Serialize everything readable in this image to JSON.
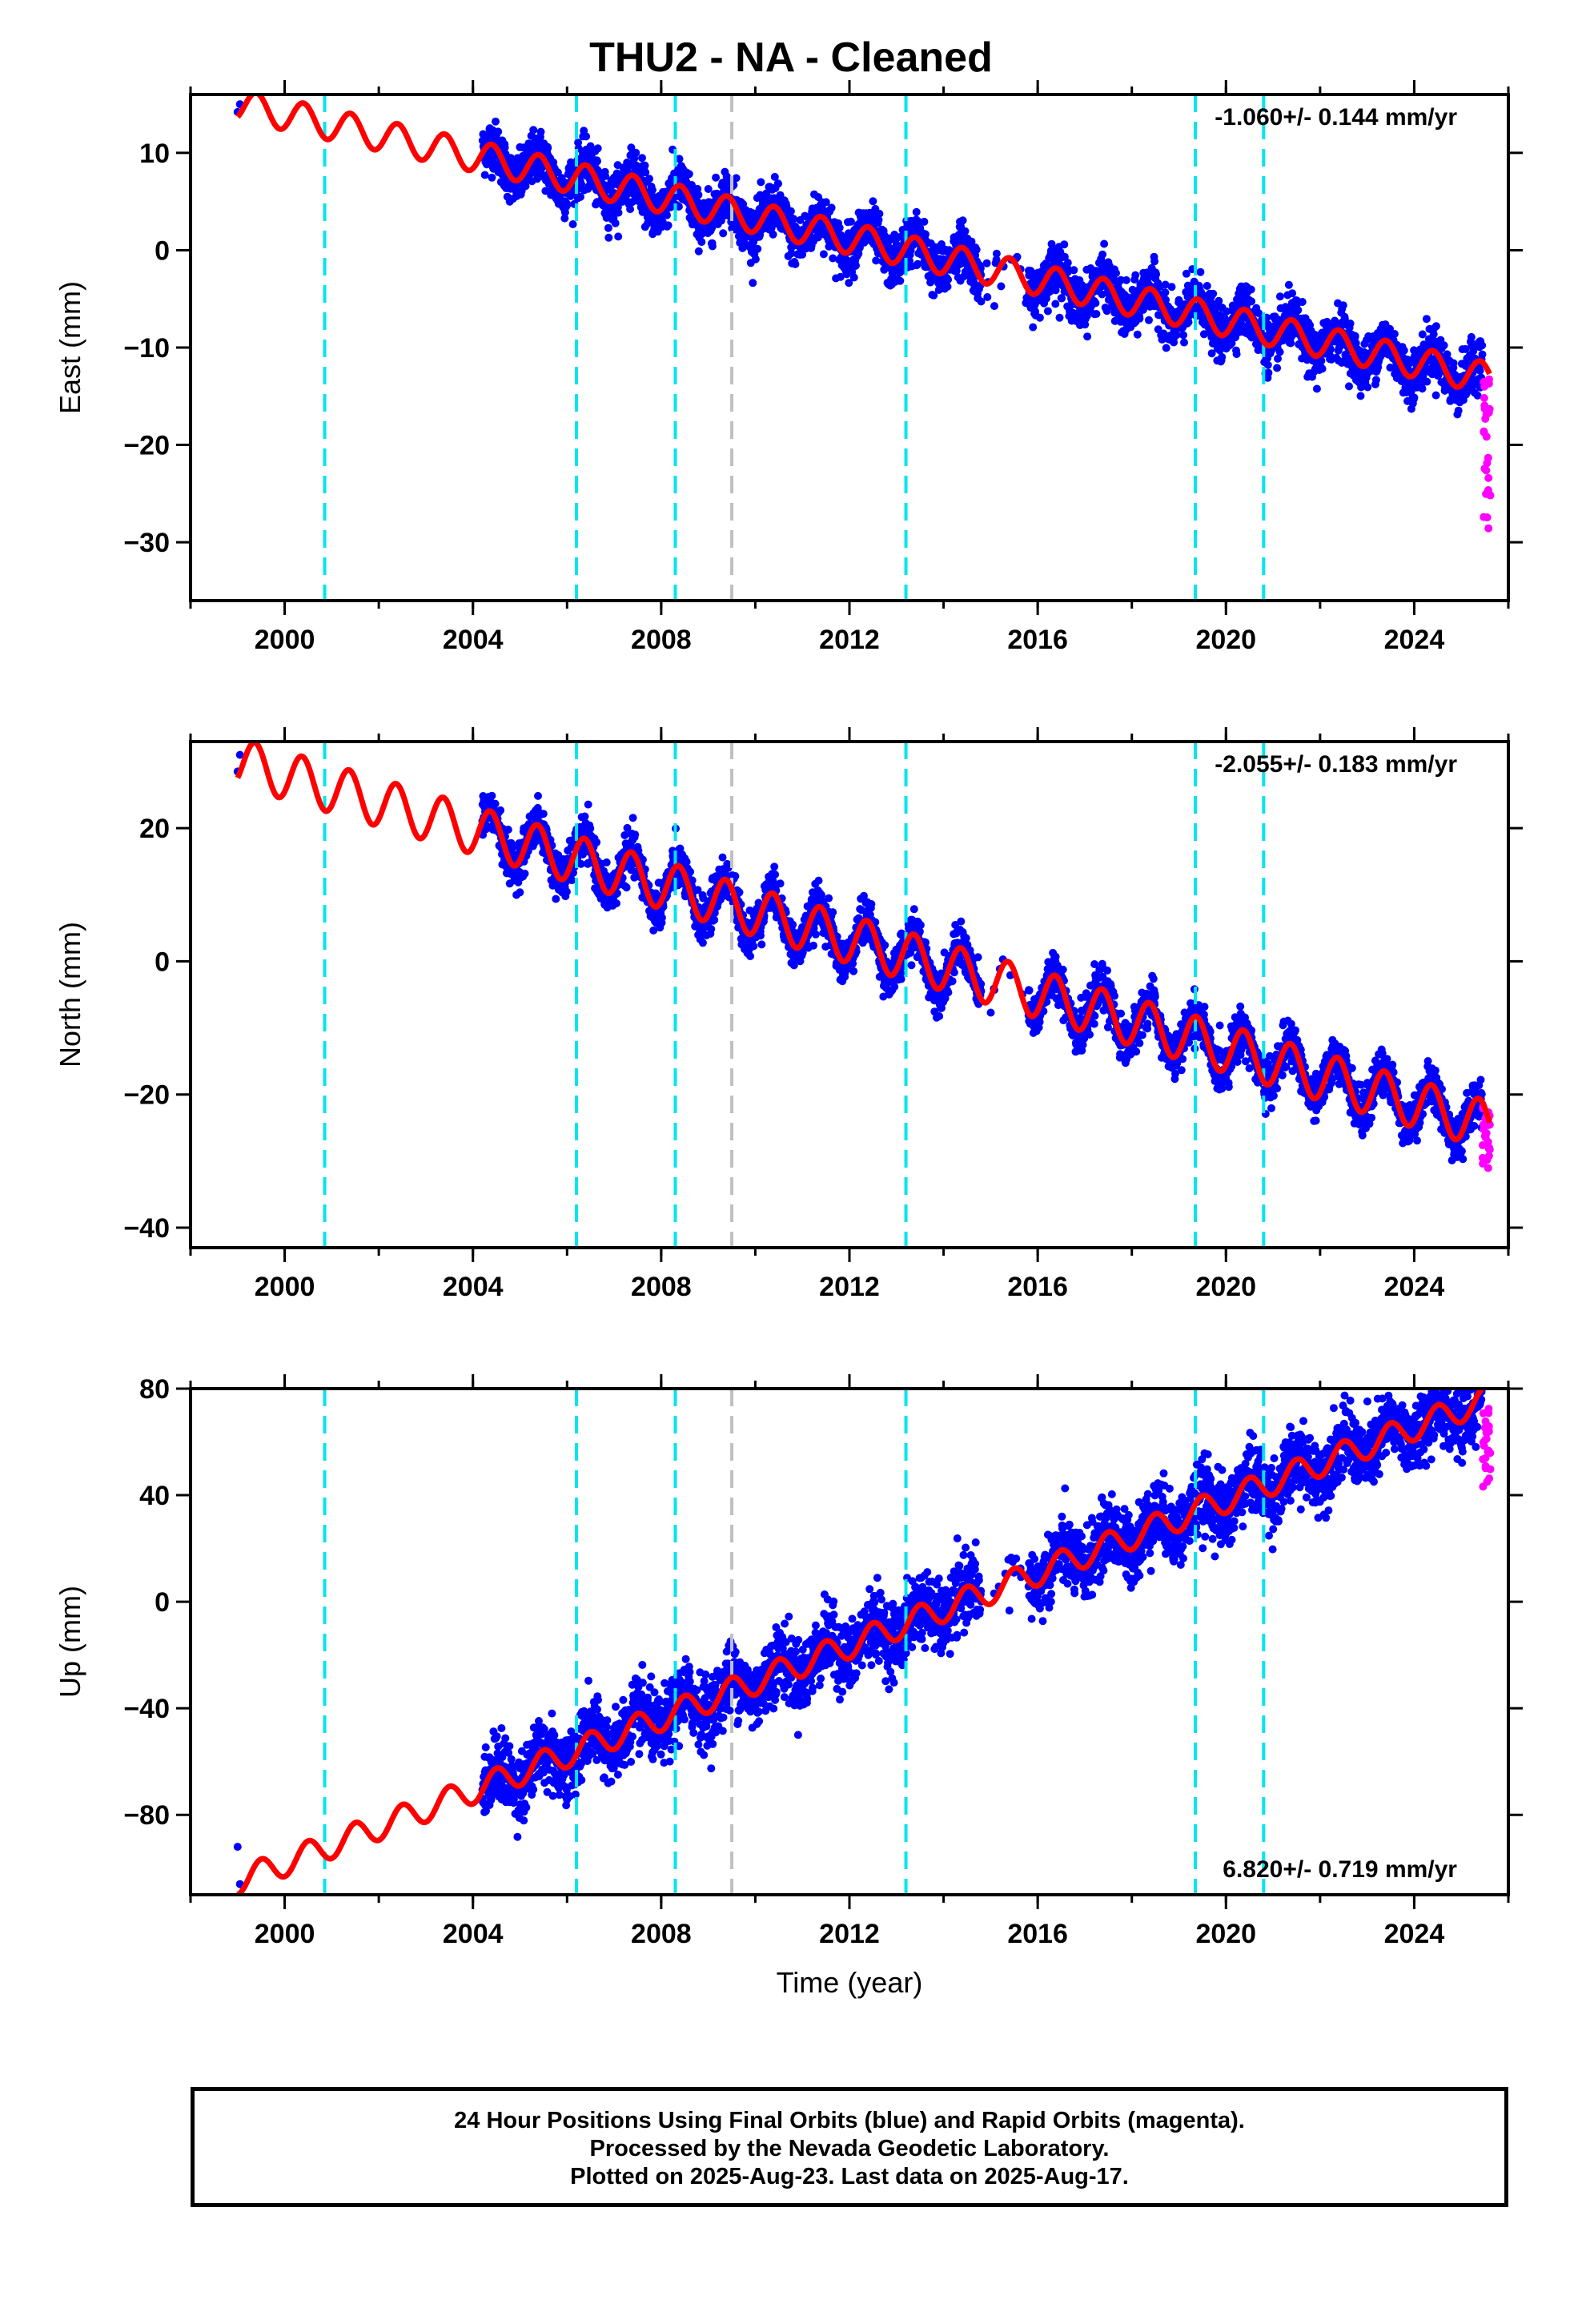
{
  "title": "THU2  - NA - Cleaned",
  "footer": {
    "line1": "24 Hour Positions Using Final Orbits (blue) and Rapid Orbits (magenta).",
    "line2": "Processed by the Nevada Geodetic Laboratory.",
    "line3": "Plotted on 2025-Aug-23. Last data on 2025-Aug-17."
  },
  "colors": {
    "final": "#0000ff",
    "rapid": "#ff00ff",
    "model": "#ff0000",
    "offset_line": "#00e5ee",
    "gap_line": "#c0c0c0"
  },
  "chart_data": [
    {
      "type": "scatter",
      "component": "East",
      "ylabel": "East (mm)",
      "xlabel": "",
      "xlim": [
        1998.0,
        2026.0
      ],
      "ylim": [
        -36,
        16
      ],
      "x_ticks": [
        "2000",
        "2004",
        "2008",
        "2012",
        "2016",
        "2020",
        "2024"
      ],
      "y_ticks": [
        "−30",
        "−20",
        "−10",
        "0",
        "10"
      ],
      "y_tick_values": [
        -30,
        -20,
        -10,
        0,
        10
      ],
      "rate": "-1.060+/- 0.144 mm/yr",
      "rate_position": "top-right",
      "model": {
        "start": 1999.0,
        "end": 2025.6,
        "intercept": 15.0,
        "slope": -1.06,
        "amplitude": 1.6,
        "phase": 0.15
      },
      "scatter_noise": 1.3,
      "data_start": 2004.2,
      "early_points": {
        "x": [
          1999.0,
          1999.05
        ],
        "y": [
          14.2,
          15.0
        ]
      },
      "gaps": [
        [
          2014.8,
          2015.8
        ]
      ],
      "rapid": {
        "x_start": 2025.45,
        "x_end": 2025.62,
        "y_min": -30.4,
        "y_max": -13.0
      },
      "offsets": [
        2000.85,
        2006.2,
        2008.3,
        2013.2,
        2019.35,
        2020.8
      ],
      "gap_marker": 2009.5
    },
    {
      "type": "scatter",
      "component": "North",
      "ylabel": "North (mm)",
      "xlabel": "",
      "xlim": [
        1998.0,
        2026.0
      ],
      "ylim": [
        -43,
        33
      ],
      "x_ticks": [
        "2000",
        "2004",
        "2008",
        "2012",
        "2016",
        "2020",
        "2024"
      ],
      "y_ticks": [
        "−40",
        "−20",
        "0",
        "20"
      ],
      "y_tick_values": [
        -40,
        -20,
        0,
        20
      ],
      "rate": "-2.055+/- 0.183 mm/yr",
      "rate_position": "top-right",
      "model": {
        "start": 1999.0,
        "end": 2025.6,
        "intercept": 30.0,
        "slope": -2.055,
        "amplitude": 3.6,
        "phase": 0.12
      },
      "scatter_noise": 1.6,
      "data_start": 2004.2,
      "early_points": {
        "x": [
          1999.0,
          1999.05
        ],
        "y": [
          28.5,
          31.0
        ]
      },
      "gaps": [
        [
          2014.8,
          2015.8
        ]
      ],
      "rapid": {
        "x_start": 2025.45,
        "x_end": 2025.62,
        "y_min": -32.0,
        "y_max": -21.0
      },
      "offsets": [
        2000.85,
        2006.2,
        2008.3,
        2013.2,
        2019.35,
        2020.8
      ],
      "gap_marker": 2009.5
    },
    {
      "type": "scatter",
      "component": "Up",
      "ylabel": "Up (mm)",
      "xlabel": "Time (year)",
      "xlim": [
        1998.0,
        2026.0
      ],
      "ylim": [
        -110,
        80
      ],
      "x_ticks": [
        "2000",
        "2004",
        "2008",
        "2012",
        "2016",
        "2020",
        "2024"
      ],
      "y_ticks": [
        "−80",
        "−40",
        "0",
        "40",
        "80"
      ],
      "y_tick_values": [
        -80,
        -40,
        0,
        40,
        80
      ],
      "rate": "6.820+/- 0.719 mm/yr",
      "rate_position": "bottom-right",
      "model": {
        "start": 1999.0,
        "end": 2025.6,
        "intercept": -105.0,
        "slope": 6.82,
        "amplitude": 5.0,
        "phase": 0.25
      },
      "scatter_noise": 6.5,
      "data_start": 2004.2,
      "early_points": {
        "x": [
          1999.0,
          1999.05
        ],
        "y": [
          -92.0,
          -106.0
        ]
      },
      "gaps": [
        [
          2014.8,
          2015.8
        ]
      ],
      "rapid": {
        "x_start": 2025.45,
        "x_end": 2025.62,
        "y_min": 43.0,
        "y_max": 77.0
      },
      "offsets": [
        2000.85,
        2006.2,
        2008.3,
        2013.2,
        2019.35,
        2020.8
      ],
      "gap_marker": 2009.5
    }
  ]
}
